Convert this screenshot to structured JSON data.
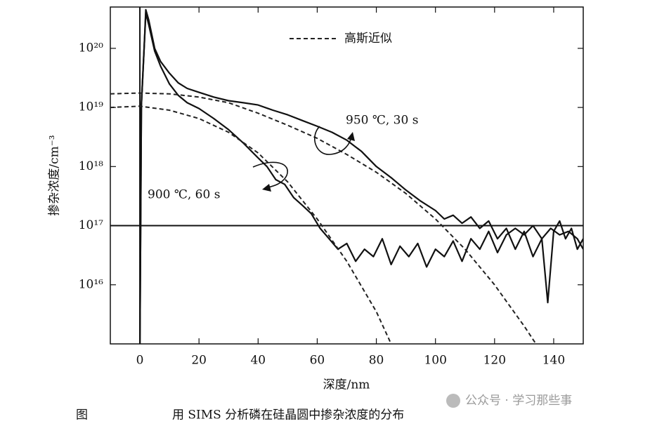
{
  "chart_data": {
    "type": "line",
    "y_label": "掺杂浓度/cm⁻³",
    "x_label": "深度/nm",
    "log_y": true,
    "xlim": [
      -10,
      150
    ],
    "xticks": [
      0,
      20,
      40,
      60,
      80,
      100,
      120,
      140
    ],
    "ylim": [
      1000000000000000.0,
      5e+20
    ],
    "yticks": [
      {
        "value": 1e+16,
        "label": "10¹⁶"
      },
      {
        "value": 1e+17,
        "label": "10¹⁷"
      },
      {
        "value": 1e+18,
        "label": "10¹⁸"
      },
      {
        "value": 1e+19,
        "label": "10¹⁹"
      },
      {
        "value": 1e+20,
        "label": "10²⁰"
      }
    ],
    "reference_lines": {
      "y": 1e+17,
      "x": 0
    },
    "annotations": [
      "950 ℃, 30 s",
      "900 ℃, 60 s"
    ],
    "series": [
      {
        "color": "#111111",
        "dashed": false,
        "x": [
          0,
          0.5,
          1.5,
          2,
          3,
          5,
          7,
          10,
          13,
          16,
          20,
          25,
          30,
          35,
          40,
          45,
          50,
          55,
          60,
          65,
          70,
          75,
          80,
          85,
          90,
          95,
          100,
          103,
          106,
          109,
          112,
          115,
          118,
          121,
          124,
          127,
          130,
          133,
          136,
          138,
          140,
          142,
          144,
          146,
          148,
          150
        ],
        "values": [
          1000000000000000.0,
          1.1e+19,
          1.2e+20,
          4.5e+20,
          3e+20,
          1e+20,
          6e+19,
          3.8e+19,
          2.6e+19,
          2.1e+19,
          1.8e+19,
          1.5e+19,
          1.3e+19,
          1.2e+19,
          1.1e+19,
          9e+18,
          7.5e+18,
          6e+18,
          4.8e+18,
          3.8e+18,
          2.8e+18,
          1.8e+18,
          1e+18,
          6.5e+17,
          4e+17,
          2.6e+17,
          1.8e+17,
          1.3e+17,
          1.5e+17,
          1.1e+17,
          1.4e+17,
          9e+16,
          1.2e+17,
          6e+16,
          9e+16,
          4e+16,
          8e+16,
          3e+16,
          6e+16,
          5000000000000000.0,
          8e+16,
          1.2e+17,
          6e+16,
          9e+16,
          4e+16,
          6e+16
        ]
      },
      {
        "color": "#111111",
        "dashed": false,
        "x": [
          0,
          0.5,
          1.5,
          2,
          3,
          5,
          7,
          10,
          13,
          16,
          20,
          25,
          30,
          35,
          40,
          43,
          46,
          49,
          52,
          55,
          58,
          61,
          64,
          67,
          70,
          73,
          76,
          79,
          82,
          85,
          88,
          91,
          94,
          97,
          100,
          103,
          106,
          109,
          112,
          115,
          118,
          121,
          124,
          127,
          130,
          133,
          136,
          139,
          142,
          145,
          148,
          150
        ],
        "values": [
          1000000000000000.0,
          1.1e+19,
          1.2e+20,
          4e+20,
          2.5e+20,
          9e+19,
          5e+19,
          2.5e+19,
          1.6e+19,
          1.2e+19,
          9.6e+18,
          6.5e+18,
          4.2e+18,
          2.5e+18,
          1.4e+18,
          1e+18,
          6e+17,
          5e+17,
          3e+17,
          2.2e+17,
          1.6e+17,
          9e+16,
          6e+16,
          4e+16,
          5e+16,
          2.5e+16,
          4e+16,
          3e+16,
          6e+16,
          2.2e+16,
          4.5e+16,
          3e+16,
          5e+16,
          2e+16,
          4e+16,
          3e+16,
          5.5e+16,
          2.5e+16,
          6e+16,
          4e+16,
          8e+16,
          3.5e+16,
          7e+16,
          9e+16,
          7e+16,
          1e+17,
          6e+16,
          9e+16,
          7e+16,
          8e+16,
          6e+16,
          4e+16
        ]
      },
      {
        "name": "高斯近似",
        "color": "#222222",
        "dashed": true,
        "x": [
          -10,
          0,
          10,
          20,
          30,
          40,
          50,
          60,
          70,
          80,
          90,
          100,
          110,
          120,
          130,
          134
        ],
        "values": [
          1.7e+19,
          1.75e+19,
          1.7e+19,
          1.5e+19,
          1.2e+19,
          8e+18,
          5e+18,
          3e+18,
          1.6e+18,
          8e+17,
          3.5e+17,
          1.3e+17,
          4e+16,
          1e+16,
          2000000000000000.0,
          1000000000000000.0
        ]
      },
      {
        "color": "#222222",
        "dashed": true,
        "x": [
          -10,
          0,
          10,
          20,
          30,
          40,
          50,
          60,
          70,
          80,
          85
        ],
        "values": [
          1e+19,
          1.05e+19,
          9e+18,
          6.5e+18,
          3.8e+18,
          1.7e+18,
          5.5e+17,
          1.3e+17,
          2.5e+16,
          3500000000000000.0,
          1000000000000000.0
        ]
      }
    ]
  },
  "caption": {
    "label": "图",
    "text": "用 SIMS 分析磷在硅晶圆中掺杂浓度的分布"
  },
  "watermark": "公众号 · 学习那些事"
}
